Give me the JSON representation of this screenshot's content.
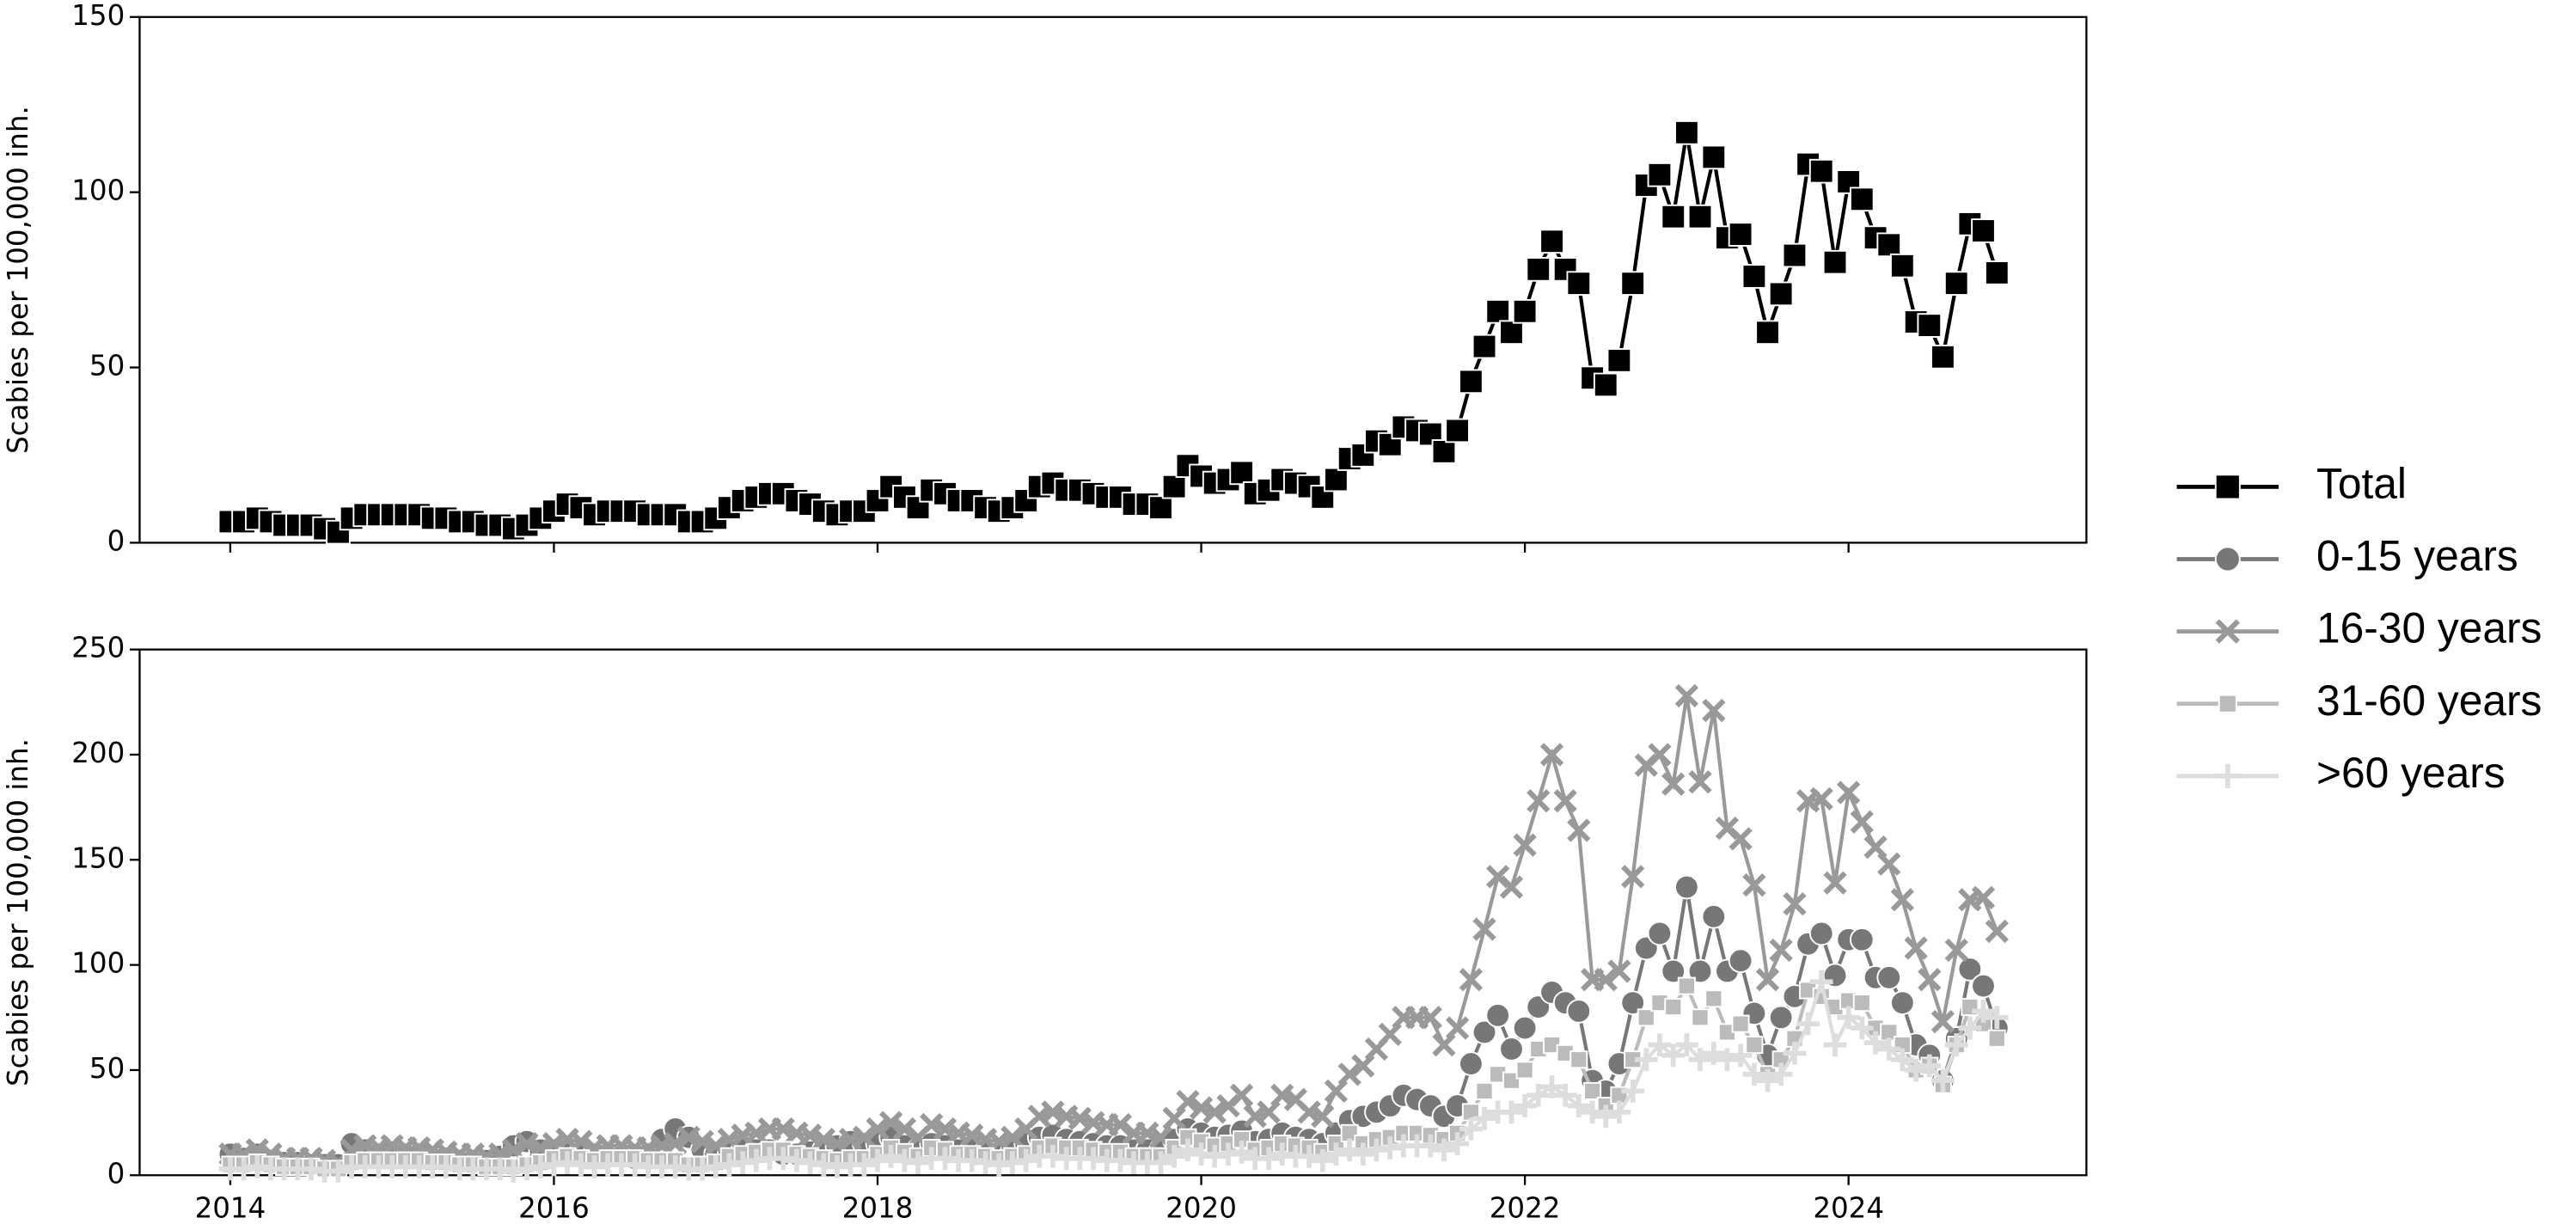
{
  "chart_data": [
    {
      "type": "line",
      "ylabel": "Scabies per 100,000 inh.",
      "x": [
        2014,
        2014.083,
        2014.167,
        2014.25,
        2014.333,
        2014.417,
        2014.5,
        2014.583,
        2014.667,
        2014.75,
        2014.833,
        2014.917,
        2015,
        2015.083,
        2015.167,
        2015.25,
        2015.333,
        2015.417,
        2015.5,
        2015.583,
        2015.667,
        2015.75,
        2015.833,
        2015.917,
        2016,
        2016.083,
        2016.167,
        2016.25,
        2016.333,
        2016.417,
        2016.5,
        2016.583,
        2016.667,
        2016.75,
        2016.833,
        2016.917,
        2017,
        2017.083,
        2017.167,
        2017.25,
        2017.333,
        2017.417,
        2017.5,
        2017.583,
        2017.667,
        2017.75,
        2017.833,
        2017.917,
        2018,
        2018.083,
        2018.167,
        2018.25,
        2018.333,
        2018.417,
        2018.5,
        2018.583,
        2018.667,
        2018.75,
        2018.833,
        2018.917,
        2019,
        2019.083,
        2019.167,
        2019.25,
        2019.333,
        2019.417,
        2019.5,
        2019.583,
        2019.667,
        2019.75,
        2019.833,
        2019.917,
        2020,
        2020.083,
        2020.167,
        2020.25,
        2020.333,
        2020.417,
        2020.5,
        2020.583,
        2020.667,
        2020.75,
        2020.833,
        2020.917,
        2021,
        2021.083,
        2021.167,
        2021.25,
        2021.333,
        2021.417,
        2021.5,
        2021.583,
        2021.667,
        2021.75,
        2021.833,
        2021.917,
        2022,
        2022.083,
        2022.167,
        2022.25,
        2022.333,
        2022.417,
        2022.5,
        2022.583,
        2022.667,
        2022.75,
        2022.833,
        2022.917,
        2023,
        2023.083,
        2023.167,
        2023.25,
        2023.333,
        2023.417,
        2023.5,
        2023.583,
        2023.667,
        2023.75,
        2023.833,
        2023.917,
        2024,
        2024.083,
        2024.167,
        2024.25,
        2024.333,
        2024.417,
        2024.5,
        2024.583,
        2024.667,
        2024.75,
        2024.833,
        2024.917
      ],
      "series": [
        {
          "name": "Total",
          "color": "#000000",
          "marker": "square",
          "values": [
            6,
            6,
            7,
            6,
            5,
            5,
            5,
            4,
            3,
            7,
            8,
            8,
            8,
            8,
            8,
            7,
            7,
            6,
            6,
            5,
            5,
            4,
            5,
            7,
            9,
            11,
            10,
            8,
            9,
            9,
            9,
            8,
            8,
            8,
            6,
            6,
            7,
            10,
            12,
            13,
            14,
            14,
            12,
            11,
            9,
            8,
            9,
            9,
            12,
            16,
            13,
            10,
            15,
            14,
            12,
            12,
            10,
            9,
            10,
            12,
            16,
            17,
            15,
            15,
            14,
            13,
            13,
            11,
            11,
            10,
            16,
            22,
            19,
            17,
            18,
            20,
            14,
            15,
            18,
            17,
            16,
            13,
            18,
            24,
            25,
            29,
            28,
            33,
            32,
            31,
            26,
            32,
            46,
            56,
            66,
            60,
            66,
            78,
            86,
            78,
            74,
            47,
            45,
            52,
            74,
            102,
            105,
            93,
            117,
            93,
            110,
            87,
            88,
            76,
            60,
            71,
            82,
            108,
            106,
            80,
            103,
            98,
            87,
            85,
            79,
            63,
            62,
            53,
            74,
            91,
            89,
            77
          ]
        }
      ],
      "xlim": [
        2013.44,
        2025.47
      ],
      "xticks": [
        2014,
        2016,
        2018,
        2020,
        2022,
        2024
      ],
      "ylim": [
        0,
        150
      ],
      "yticks": [
        0,
        50,
        100,
        150
      ]
    },
    {
      "type": "line",
      "ylabel": "Scabies per 100,000 inh.",
      "x": [
        2014,
        2014.083,
        2014.167,
        2014.25,
        2014.333,
        2014.417,
        2014.5,
        2014.583,
        2014.667,
        2014.75,
        2014.833,
        2014.917,
        2015,
        2015.083,
        2015.167,
        2015.25,
        2015.333,
        2015.417,
        2015.5,
        2015.583,
        2015.667,
        2015.75,
        2015.833,
        2015.917,
        2016,
        2016.083,
        2016.167,
        2016.25,
        2016.333,
        2016.417,
        2016.5,
        2016.583,
        2016.667,
        2016.75,
        2016.833,
        2016.917,
        2017,
        2017.083,
        2017.167,
        2017.25,
        2017.333,
        2017.417,
        2017.5,
        2017.583,
        2017.667,
        2017.75,
        2017.833,
        2017.917,
        2018,
        2018.083,
        2018.167,
        2018.25,
        2018.333,
        2018.417,
        2018.5,
        2018.583,
        2018.667,
        2018.75,
        2018.833,
        2018.917,
        2019,
        2019.083,
        2019.167,
        2019.25,
        2019.333,
        2019.417,
        2019.5,
        2019.583,
        2019.667,
        2019.75,
        2019.833,
        2019.917,
        2020,
        2020.083,
        2020.167,
        2020.25,
        2020.333,
        2020.417,
        2020.5,
        2020.583,
        2020.667,
        2020.75,
        2020.833,
        2020.917,
        2021,
        2021.083,
        2021.167,
        2021.25,
        2021.333,
        2021.417,
        2021.5,
        2021.583,
        2021.667,
        2021.75,
        2021.833,
        2021.917,
        2022,
        2022.083,
        2022.167,
        2022.25,
        2022.333,
        2022.417,
        2022.5,
        2022.583,
        2022.667,
        2022.75,
        2022.833,
        2022.917,
        2023,
        2023.083,
        2023.167,
        2023.25,
        2023.333,
        2023.417,
        2023.5,
        2023.583,
        2023.667,
        2023.75,
        2023.833,
        2023.917,
        2024,
        2024.083,
        2024.167,
        2024.25,
        2024.333,
        2024.417,
        2024.5,
        2024.583,
        2024.667,
        2024.75,
        2024.833,
        2024.917
      ],
      "series": [
        {
          "name": "0-15 years",
          "color": "#777777",
          "marker": "circle",
          "values": [
            10,
            8,
            10,
            7,
            6,
            6,
            5,
            5,
            5,
            15,
            12,
            10,
            11,
            10,
            10,
            8,
            8,
            7,
            7,
            7,
            9,
            14,
            16,
            12,
            12,
            12,
            11,
            10,
            10,
            9,
            8,
            10,
            17,
            22,
            18,
            12,
            10,
            11,
            12,
            12,
            12,
            10,
            10,
            11,
            12,
            14,
            16,
            15,
            15,
            18,
            14,
            12,
            15,
            14,
            12,
            12,
            11,
            10,
            12,
            15,
            18,
            19,
            17,
            16,
            15,
            14,
            14,
            12,
            12,
            12,
            17,
            22,
            20,
            18,
            19,
            21,
            16,
            17,
            20,
            18,
            17,
            15,
            20,
            26,
            28,
            30,
            33,
            38,
            36,
            33,
            28,
            33,
            53,
            68,
            76,
            60,
            70,
            80,
            87,
            82,
            78,
            45,
            40,
            53,
            82,
            108,
            115,
            97,
            137,
            97,
            123,
            97,
            102,
            77,
            57,
            75,
            85,
            110,
            115,
            95,
            112,
            112,
            94,
            94,
            82,
            62,
            57,
            45,
            65,
            98,
            90,
            70
          ]
        },
        {
          "name": "16-30 years",
          "color": "#999999",
          "marker": "x",
          "values": [
            10,
            10,
            12,
            10,
            8,
            8,
            8,
            7,
            6,
            12,
            14,
            13,
            14,
            13,
            13,
            12,
            11,
            10,
            10,
            9,
            10,
            12,
            15,
            13,
            15,
            17,
            16,
            13,
            14,
            14,
            13,
            13,
            14,
            15,
            18,
            16,
            14,
            17,
            19,
            20,
            22,
            22,
            20,
            19,
            17,
            15,
            17,
            18,
            22,
            25,
            22,
            18,
            24,
            22,
            20,
            19,
            17,
            16,
            18,
            22,
            28,
            30,
            28,
            27,
            25,
            24,
            24,
            20,
            20,
            18,
            27,
            35,
            32,
            30,
            33,
            38,
            28,
            30,
            38,
            36,
            30,
            28,
            40,
            48,
            52,
            60,
            67,
            75,
            75,
            75,
            62,
            70,
            93,
            117,
            142,
            137,
            157,
            178,
            200,
            178,
            164,
            93,
            93,
            97,
            142,
            195,
            200,
            186,
            228,
            187,
            221,
            165,
            160,
            138,
            93,
            107,
            129,
            178,
            179,
            139,
            182,
            168,
            156,
            148,
            131,
            108,
            93,
            73,
            107,
            131,
            132,
            116
          ]
        },
        {
          "name": "31-60 years",
          "color": "#bbbbbb",
          "marker": "square",
          "values": [
            5,
            5,
            6,
            5,
            4,
            4,
            4,
            3,
            3,
            6,
            7,
            7,
            7,
            7,
            7,
            6,
            6,
            5,
            5,
            4,
            4,
            4,
            5,
            6,
            8,
            9,
            8,
            7,
            8,
            8,
            8,
            7,
            7,
            7,
            5,
            5,
            6,
            9,
            10,
            11,
            12,
            12,
            10,
            9,
            8,
            7,
            8,
            8,
            10,
            13,
            11,
            9,
            13,
            12,
            10,
            10,
            9,
            8,
            9,
            10,
            13,
            14,
            13,
            13,
            12,
            11,
            11,
            9,
            9,
            9,
            13,
            18,
            16,
            14,
            15,
            17,
            12,
            13,
            15,
            14,
            13,
            11,
            15,
            20,
            15,
            17,
            18,
            20,
            20,
            19,
            17,
            20,
            30,
            40,
            48,
            45,
            50,
            60,
            62,
            58,
            55,
            40,
            33,
            38,
            55,
            75,
            82,
            80,
            90,
            75,
            84,
            68,
            72,
            62,
            48,
            55,
            65,
            88,
            85,
            80,
            83,
            82,
            70,
            68,
            62,
            50,
            52,
            43,
            62,
            80,
            72,
            65
          ]
        },
        {
          "name": ">60 years",
          "color": "#dddddd",
          "marker": "plus",
          "values": [
            3,
            3,
            4,
            3,
            3,
            3,
            3,
            2,
            2,
            4,
            4,
            4,
            4,
            4,
            4,
            4,
            4,
            3,
            3,
            3,
            3,
            2,
            3,
            4,
            5,
            6,
            5,
            4,
            5,
            5,
            5,
            4,
            4,
            4,
            3,
            3,
            4,
            5,
            6,
            7,
            8,
            8,
            7,
            6,
            5,
            4,
            5,
            5,
            7,
            9,
            7,
            6,
            8,
            8,
            7,
            7,
            6,
            5,
            6,
            7,
            9,
            9,
            8,
            8,
            8,
            7,
            7,
            6,
            6,
            6,
            9,
            12,
            10,
            9,
            10,
            11,
            8,
            8,
            10,
            9,
            9,
            7,
            10,
            12,
            10,
            12,
            13,
            14,
            14,
            14,
            12,
            15,
            22,
            27,
            30,
            30,
            33,
            38,
            42,
            38,
            33,
            30,
            28,
            30,
            40,
            55,
            62,
            57,
            62,
            55,
            58,
            55,
            57,
            48,
            45,
            48,
            58,
            72,
            92,
            62,
            75,
            70,
            63,
            60,
            55,
            50,
            52,
            45,
            62,
            70,
            78,
            75
          ]
        }
      ],
      "xlim": [
        2013.44,
        2025.47
      ],
      "xticks": [
        2014,
        2016,
        2018,
        2020,
        2022,
        2024
      ],
      "ylim": [
        0,
        250
      ],
      "yticks": [
        0,
        50,
        100,
        150,
        200,
        250
      ]
    }
  ]
}
